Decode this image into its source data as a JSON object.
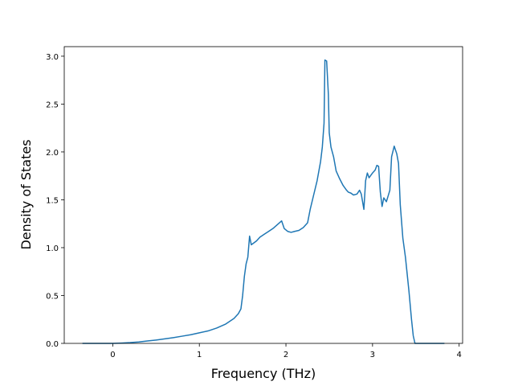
{
  "chart_data": {
    "type": "line",
    "x_label": "Frequency (THz)",
    "y_label": "Density of States",
    "x": [
      -0.35,
      -0.2,
      0,
      0.1,
      0.2,
      0.3,
      0.4,
      0.5,
      0.6,
      0.7,
      0.8,
      0.9,
      1.0,
      1.1,
      1.2,
      1.3,
      1.4,
      1.45,
      1.48,
      1.5,
      1.52,
      1.54,
      1.56,
      1.58,
      1.6,
      1.63,
      1.66,
      1.7,
      1.75,
      1.8,
      1.85,
      1.9,
      1.95,
      1.98,
      2.02,
      2.06,
      2.1,
      2.15,
      2.2,
      2.25,
      2.28,
      2.32,
      2.36,
      2.4,
      2.42,
      2.44,
      2.45,
      2.47,
      2.49,
      2.5,
      2.52,
      2.55,
      2.58,
      2.62,
      2.66,
      2.7,
      2.72,
      2.75,
      2.78,
      2.82,
      2.85,
      2.87,
      2.9,
      2.92,
      2.94,
      2.96,
      3.0,
      3.03,
      3.05,
      3.07,
      3.09,
      3.11,
      3.13,
      3.16,
      3.2,
      3.22,
      3.25,
      3.28,
      3.3,
      3.32,
      3.35,
      3.38,
      3.42,
      3.45,
      3.47,
      3.49,
      3.6,
      3.7,
      3.83
    ],
    "values": [
      0,
      0,
      0,
      0.003,
      0.008,
      0.015,
      0.025,
      0.035,
      0.047,
      0.06,
      0.075,
      0.09,
      0.11,
      0.13,
      0.16,
      0.2,
      0.26,
      0.31,
      0.36,
      0.5,
      0.7,
      0.83,
      0.9,
      1.12,
      1.03,
      1.05,
      1.07,
      1.11,
      1.14,
      1.17,
      1.2,
      1.24,
      1.28,
      1.2,
      1.17,
      1.16,
      1.17,
      1.18,
      1.21,
      1.26,
      1.4,
      1.55,
      1.7,
      1.9,
      2.05,
      2.3,
      2.96,
      2.95,
      2.6,
      2.2,
      2.05,
      1.95,
      1.8,
      1.72,
      1.65,
      1.6,
      1.58,
      1.57,
      1.55,
      1.56,
      1.6,
      1.56,
      1.4,
      1.7,
      1.78,
      1.73,
      1.78,
      1.81,
      1.86,
      1.85,
      1.58,
      1.43,
      1.52,
      1.48,
      1.6,
      1.95,
      2.06,
      1.98,
      1.88,
      1.45,
      1.1,
      0.9,
      0.55,
      0.25,
      0.08,
      0,
      0,
      0,
      0
    ],
    "color": "#1f77b4",
    "xlim": [
      -0.56,
      4.04
    ],
    "ylim": [
      0,
      3.1
    ],
    "xticks": [
      0,
      1,
      2,
      3,
      4
    ],
    "yticks": [
      {
        "value": 0,
        "label": "0.0"
      },
      {
        "value": 0.5,
        "label": "0.5"
      },
      {
        "value": 1,
        "label": "1.0"
      },
      {
        "value": 1.5,
        "label": "1.5"
      },
      {
        "value": 2,
        "label": "2.0"
      },
      {
        "value": 2.5,
        "label": "2.5"
      },
      {
        "value": 3,
        "label": "3.0"
      }
    ]
  }
}
